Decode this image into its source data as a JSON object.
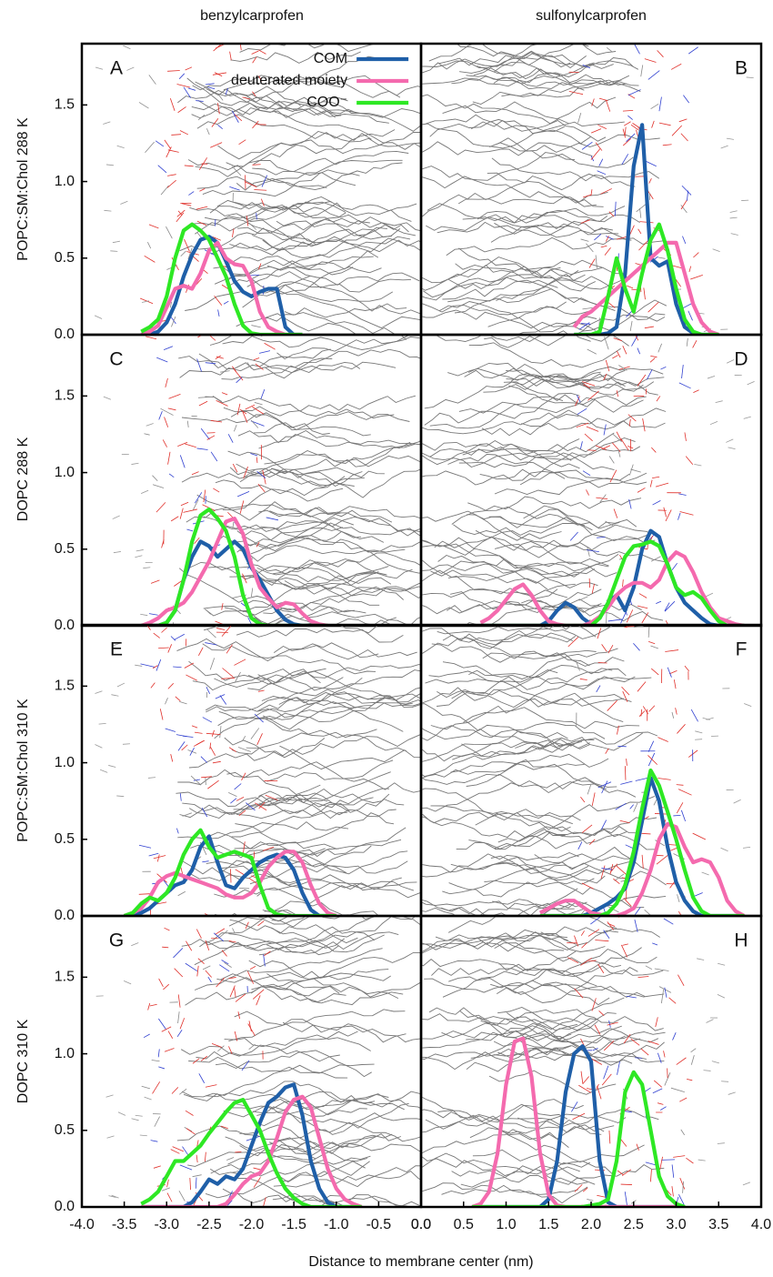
{
  "figure": {
    "column_titles": [
      "benzylcarprofen",
      "sulfonylcarprofen"
    ],
    "row_titles": [
      "POPC:SM:Chol 288 K",
      "DOPC 288 K",
      "POPC:SM:Chol 310 K",
      "DOPC 310 K"
    ],
    "xlabel": "Distance to membrane center (nm)"
  },
  "chart_data": [
    {
      "type": "line",
      "label": "A",
      "xlim": [
        -4,
        0
      ],
      "ylim": [
        0,
        1.9
      ],
      "legend": "top-right",
      "yticks": [
        {
          "value": 0,
          "label": "0.0"
        },
        0.5,
        {
          "value": 1,
          "label": "1.0"
        },
        1.5
      ],
      "x": [
        -3.3,
        -3.2,
        -3.1,
        -3.0,
        -2.9,
        -2.8,
        -2.7,
        -2.6,
        -2.5,
        -2.4,
        -2.3,
        -2.2,
        -2.1,
        -2.0,
        -1.9,
        -1.8,
        -1.7,
        -1.6,
        -1.5,
        -1.4
      ],
      "series": [
        {
          "name": "COM",
          "color": "#1f5fa8",
          "values": [
            0,
            0,
            0.02,
            0.08,
            0.2,
            0.38,
            0.52,
            0.62,
            0.64,
            0.6,
            0.48,
            0.35,
            0.28,
            0.25,
            0.28,
            0.3,
            0.3,
            0.05,
            0,
            0
          ]
        },
        {
          "name": "deuterated moiety",
          "color": "#f46aae",
          "values": [
            0,
            0.02,
            0.06,
            0.18,
            0.3,
            0.32,
            0.3,
            0.4,
            0.55,
            0.6,
            0.5,
            0.46,
            0.45,
            0.35,
            0.15,
            0.05,
            0.02,
            0,
            0,
            0
          ]
        },
        {
          "name": "COO⁻",
          "color": "#2ee824",
          "values": [
            0.02,
            0.05,
            0.1,
            0.25,
            0.5,
            0.68,
            0.72,
            0.68,
            0.62,
            0.5,
            0.38,
            0.2,
            0.06,
            0.01,
            0,
            0,
            0,
            0,
            0,
            0
          ]
        }
      ]
    },
    {
      "type": "line",
      "label": "B",
      "xlim": [
        0,
        4
      ],
      "ylim": [
        0,
        1.9
      ],
      "x": [
        1.8,
        1.9,
        2.0,
        2.1,
        2.2,
        2.3,
        2.4,
        2.5,
        2.6,
        2.7,
        2.8,
        2.9,
        3.0,
        3.1,
        3.2,
        3.3,
        3.4,
        3.5
      ],
      "series": [
        {
          "color": "#1f5fa8",
          "values": [
            0,
            0,
            0,
            0,
            0.01,
            0.05,
            0.4,
            1.1,
            1.37,
            0.5,
            0.45,
            0.48,
            0.2,
            0.05,
            0.01,
            0,
            0,
            0
          ]
        },
        {
          "color": "#f46aae",
          "values": [
            0.05,
            0.12,
            0.15,
            0.2,
            0.25,
            0.3,
            0.35,
            0.4,
            0.45,
            0.5,
            0.55,
            0.6,
            0.6,
            0.4,
            0.2,
            0.08,
            0.02,
            0
          ]
        },
        {
          "color": "#2ee824",
          "values": [
            0,
            0,
            0,
            0.02,
            0.25,
            0.5,
            0.3,
            0.15,
            0.4,
            0.62,
            0.72,
            0.55,
            0.3,
            0.1,
            0.02,
            0,
            0,
            0
          ]
        }
      ]
    },
    {
      "type": "line",
      "label": "C",
      "xlim": [
        -4,
        0
      ],
      "ylim": [
        0,
        1.9
      ],
      "yticks": [
        {
          "value": 0,
          "label": "0.0"
        },
        0.5,
        {
          "value": 1,
          "label": "1.0"
        },
        1.5
      ],
      "x": [
        -3.3,
        -3.2,
        -3.1,
        -3.0,
        -2.9,
        -2.8,
        -2.7,
        -2.6,
        -2.5,
        -2.4,
        -2.3,
        -2.2,
        -2.1,
        -2.0,
        -1.9,
        -1.8,
        -1.7,
        -1.6,
        -1.5,
        -1.4,
        -1.3,
        -1.2,
        -1.1
      ],
      "series": [
        {
          "color": "#1f5fa8",
          "values": [
            0,
            0,
            0,
            0.02,
            0.1,
            0.3,
            0.45,
            0.55,
            0.52,
            0.45,
            0.5,
            0.55,
            0.5,
            0.38,
            0.3,
            0.2,
            0.1,
            0.04,
            0.01,
            0,
            0,
            0,
            0
          ]
        },
        {
          "color": "#f46aae",
          "values": [
            0,
            0.02,
            0.05,
            0.1,
            0.12,
            0.15,
            0.22,
            0.32,
            0.42,
            0.55,
            0.68,
            0.7,
            0.6,
            0.4,
            0.25,
            0.18,
            0.12,
            0.15,
            0.14,
            0.08,
            0.03,
            0.01,
            0
          ]
        },
        {
          "color": "#2ee824",
          "values": [
            0,
            0,
            0,
            0.02,
            0.1,
            0.3,
            0.55,
            0.72,
            0.76,
            0.7,
            0.62,
            0.45,
            0.2,
            0.05,
            0.01,
            0,
            0,
            0,
            0,
            0,
            0,
            0,
            0
          ]
        }
      ]
    },
    {
      "type": "line",
      "label": "D",
      "xlim": [
        0,
        4
      ],
      "ylim": [
        0,
        1.9
      ],
      "x": [
        0.7,
        0.8,
        0.9,
        1.0,
        1.1,
        1.2,
        1.3,
        1.4,
        1.5,
        1.6,
        1.7,
        1.8,
        1.9,
        2.0,
        2.1,
        2.2,
        2.3,
        2.4,
        2.5,
        2.6,
        2.7,
        2.8,
        2.9,
        3.0,
        3.1,
        3.2,
        3.3,
        3.4,
        3.5,
        3.6,
        3.7,
        3.8
      ],
      "series": [
        {
          "color": "#1f5fa8",
          "values": [
            0,
            0,
            0,
            0,
            0,
            0,
            0,
            0,
            0.03,
            0.1,
            0.15,
            0.12,
            0.05,
            0.01,
            0.05,
            0.15,
            0.2,
            0.1,
            0.25,
            0.5,
            0.62,
            0.58,
            0.4,
            0.25,
            0.15,
            0.1,
            0.05,
            0.01,
            0,
            0,
            0,
            0
          ]
        },
        {
          "color": "#f46aae",
          "values": [
            0.02,
            0.05,
            0.1,
            0.17,
            0.24,
            0.27,
            0.2,
            0.1,
            0.03,
            0.01,
            0,
            0,
            0,
            0.02,
            0.06,
            0.12,
            0.2,
            0.25,
            0.28,
            0.28,
            0.25,
            0.3,
            0.42,
            0.48,
            0.45,
            0.35,
            0.22,
            0.12,
            0.05,
            0.03,
            0.01,
            0
          ]
        },
        {
          "color": "#2ee824",
          "values": [
            0,
            0,
            0,
            0,
            0,
            0,
            0,
            0,
            0,
            0,
            0,
            0,
            0,
            0,
            0.05,
            0.15,
            0.3,
            0.45,
            0.52,
            0.53,
            0.55,
            0.52,
            0.4,
            0.25,
            0.2,
            0.22,
            0.18,
            0.1,
            0.03,
            0,
            0,
            0
          ]
        }
      ]
    },
    {
      "type": "line",
      "label": "E",
      "xlim": [
        -4,
        0
      ],
      "ylim": [
        0,
        1.9
      ],
      "yticks": [
        {
          "value": 0,
          "label": "0.0"
        },
        0.5,
        {
          "value": 1,
          "label": "1.0"
        },
        1.5
      ],
      "x": [
        -3.5,
        -3.4,
        -3.3,
        -3.2,
        -3.1,
        -3.0,
        -2.9,
        -2.8,
        -2.7,
        -2.6,
        -2.5,
        -2.4,
        -2.3,
        -2.2,
        -2.1,
        -2.0,
        -1.9,
        -1.8,
        -1.7,
        -1.6,
        -1.5,
        -1.4,
        -1.3,
        -1.2,
        -1.1,
        -1.0
      ],
      "series": [
        {
          "color": "#1f5fa8",
          "values": [
            0,
            0,
            0.02,
            0.05,
            0.1,
            0.15,
            0.2,
            0.22,
            0.3,
            0.45,
            0.52,
            0.35,
            0.2,
            0.18,
            0.25,
            0.3,
            0.35,
            0.38,
            0.4,
            0.38,
            0.3,
            0.15,
            0.04,
            0,
            0,
            0
          ]
        },
        {
          "color": "#f46aae",
          "values": [
            0,
            0.02,
            0.05,
            0.12,
            0.22,
            0.26,
            0.28,
            0.26,
            0.24,
            0.22,
            0.2,
            0.18,
            0.14,
            0.12,
            0.12,
            0.15,
            0.22,
            0.32,
            0.38,
            0.42,
            0.42,
            0.35,
            0.2,
            0.08,
            0.02,
            0
          ]
        },
        {
          "color": "#2ee824",
          "values": [
            0,
            0.02,
            0.08,
            0.12,
            0.1,
            0.15,
            0.25,
            0.4,
            0.5,
            0.56,
            0.45,
            0.38,
            0.4,
            0.42,
            0.4,
            0.38,
            0.2,
            0.05,
            0.01,
            0,
            0,
            0,
            0,
            0,
            0,
            0
          ]
        }
      ]
    },
    {
      "type": "line",
      "label": "F",
      "xlim": [
        0,
        4
      ],
      "ylim": [
        0,
        1.9
      ],
      "x": [
        1.4,
        1.5,
        1.6,
        1.7,
        1.8,
        1.9,
        2.0,
        2.1,
        2.2,
        2.3,
        2.4,
        2.5,
        2.6,
        2.7,
        2.8,
        2.9,
        3.0,
        3.1,
        3.2,
        3.3,
        3.4,
        3.5,
        3.6,
        3.7,
        3.8
      ],
      "series": [
        {
          "color": "#1f5fa8",
          "values": [
            0,
            0,
            0,
            0,
            0,
            0,
            0.02,
            0.05,
            0.08,
            0.12,
            0.18,
            0.35,
            0.62,
            0.9,
            0.75,
            0.45,
            0.22,
            0.1,
            0.03,
            0,
            0,
            0,
            0,
            0,
            0
          ]
        },
        {
          "color": "#f46aae",
          "values": [
            0.02,
            0.05,
            0.08,
            0.1,
            0.1,
            0.06,
            0.02,
            0.01,
            0,
            0,
            0.02,
            0.05,
            0.15,
            0.3,
            0.5,
            0.6,
            0.58,
            0.45,
            0.35,
            0.37,
            0.35,
            0.25,
            0.1,
            0.03,
            0
          ]
        },
        {
          "color": "#2ee824",
          "values": [
            0,
            0,
            0,
            0,
            0,
            0,
            0,
            0,
            0.02,
            0.08,
            0.2,
            0.42,
            0.7,
            0.95,
            0.85,
            0.68,
            0.5,
            0.3,
            0.12,
            0.03,
            0,
            0,
            0,
            0,
            0
          ]
        }
      ]
    },
    {
      "type": "line",
      "label": "G",
      "xlim": [
        -4,
        0
      ],
      "ylim": [
        0,
        1.9
      ],
      "yticks": [
        {
          "value": 0,
          "label": "0.0"
        },
        0.5,
        {
          "value": 1,
          "label": "1.0"
        },
        1.5
      ],
      "xticks": [
        {
          "value": -4,
          "label": "-4.0"
        },
        -3.5,
        {
          "value": -3,
          "label": "-3.0"
        },
        -2.5,
        {
          "value": -2,
          "label": "-2.0"
        },
        -1.5,
        {
          "value": -1,
          "label": "-1.0"
        },
        -0.5,
        {
          "value": 0,
          "label": "0.0"
        }
      ],
      "x": [
        -3.3,
        -3.2,
        -3.1,
        -3.0,
        -2.9,
        -2.8,
        -2.7,
        -2.6,
        -2.5,
        -2.4,
        -2.3,
        -2.2,
        -2.1,
        -2.0,
        -1.9,
        -1.8,
        -1.7,
        -1.6,
        -1.5,
        -1.4,
        -1.3,
        -1.2,
        -1.1,
        -1.0,
        -0.9,
        -0.8,
        -0.7
      ],
      "series": [
        {
          "color": "#1f5fa8",
          "values": [
            0,
            0,
            0,
            0,
            0,
            0,
            0.03,
            0.1,
            0.18,
            0.15,
            0.2,
            0.18,
            0.25,
            0.4,
            0.55,
            0.68,
            0.72,
            0.78,
            0.8,
            0.6,
            0.3,
            0.12,
            0.03,
            0,
            0,
            0,
            0
          ]
        },
        {
          "color": "#f46aae",
          "values": [
            0,
            0,
            0,
            0,
            0,
            0,
            0,
            0,
            0,
            0,
            0.02,
            0.08,
            0.15,
            0.2,
            0.22,
            0.3,
            0.45,
            0.62,
            0.7,
            0.72,
            0.65,
            0.45,
            0.25,
            0.12,
            0.05,
            0.02,
            0
          ]
        },
        {
          "color": "#2ee824",
          "values": [
            0.02,
            0.05,
            0.1,
            0.2,
            0.3,
            0.3,
            0.35,
            0.4,
            0.48,
            0.55,
            0.62,
            0.68,
            0.7,
            0.6,
            0.5,
            0.35,
            0.22,
            0.12,
            0.06,
            0.02,
            0,
            0,
            0,
            0,
            0,
            0,
            0
          ]
        }
      ]
    },
    {
      "type": "line",
      "label": "H",
      "xlim": [
        0,
        4
      ],
      "ylim": [
        0,
        1.9
      ],
      "xticks": [
        {
          "value": 0,
          "label": "0.0"
        },
        0.5,
        {
          "value": 1,
          "label": "1.0"
        },
        1.5,
        {
          "value": 2,
          "label": "2.0"
        },
        2.5,
        {
          "value": 3,
          "label": "3.0"
        },
        3.5,
        {
          "value": 4,
          "label": "4.0"
        }
      ],
      "x": [
        0.6,
        0.7,
        0.8,
        0.9,
        1.0,
        1.1,
        1.2,
        1.3,
        1.4,
        1.5,
        1.6,
        1.7,
        1.8,
        1.9,
        2.0,
        2.1,
        2.2,
        2.3,
        2.4,
        2.5,
        2.6,
        2.7,
        2.8,
        2.9,
        3.0,
        3.1
      ],
      "series": [
        {
          "color": "#1f5fa8",
          "values": [
            0,
            0,
            0,
            0,
            0,
            0,
            0,
            0,
            0,
            0.05,
            0.3,
            0.75,
            1.0,
            1.05,
            0.95,
            0.3,
            0.03,
            0,
            0,
            0,
            0,
            0,
            0,
            0,
            0,
            0
          ]
        },
        {
          "color": "#f46aae",
          "values": [
            0,
            0.02,
            0.1,
            0.35,
            0.8,
            1.08,
            1.1,
            0.85,
            0.35,
            0.08,
            0.01,
            0,
            0,
            0,
            0,
            0,
            0,
            0,
            0,
            0,
            0,
            0,
            0,
            0,
            0,
            0
          ]
        },
        {
          "color": "#2ee824",
          "values": [
            0,
            0,
            0,
            0,
            0,
            0,
            0,
            0,
            0,
            0,
            0,
            0,
            0,
            0,
            0.01,
            0.02,
            0.05,
            0.3,
            0.75,
            0.88,
            0.8,
            0.5,
            0.2,
            0.07,
            0.02,
            0
          ]
        }
      ]
    }
  ]
}
